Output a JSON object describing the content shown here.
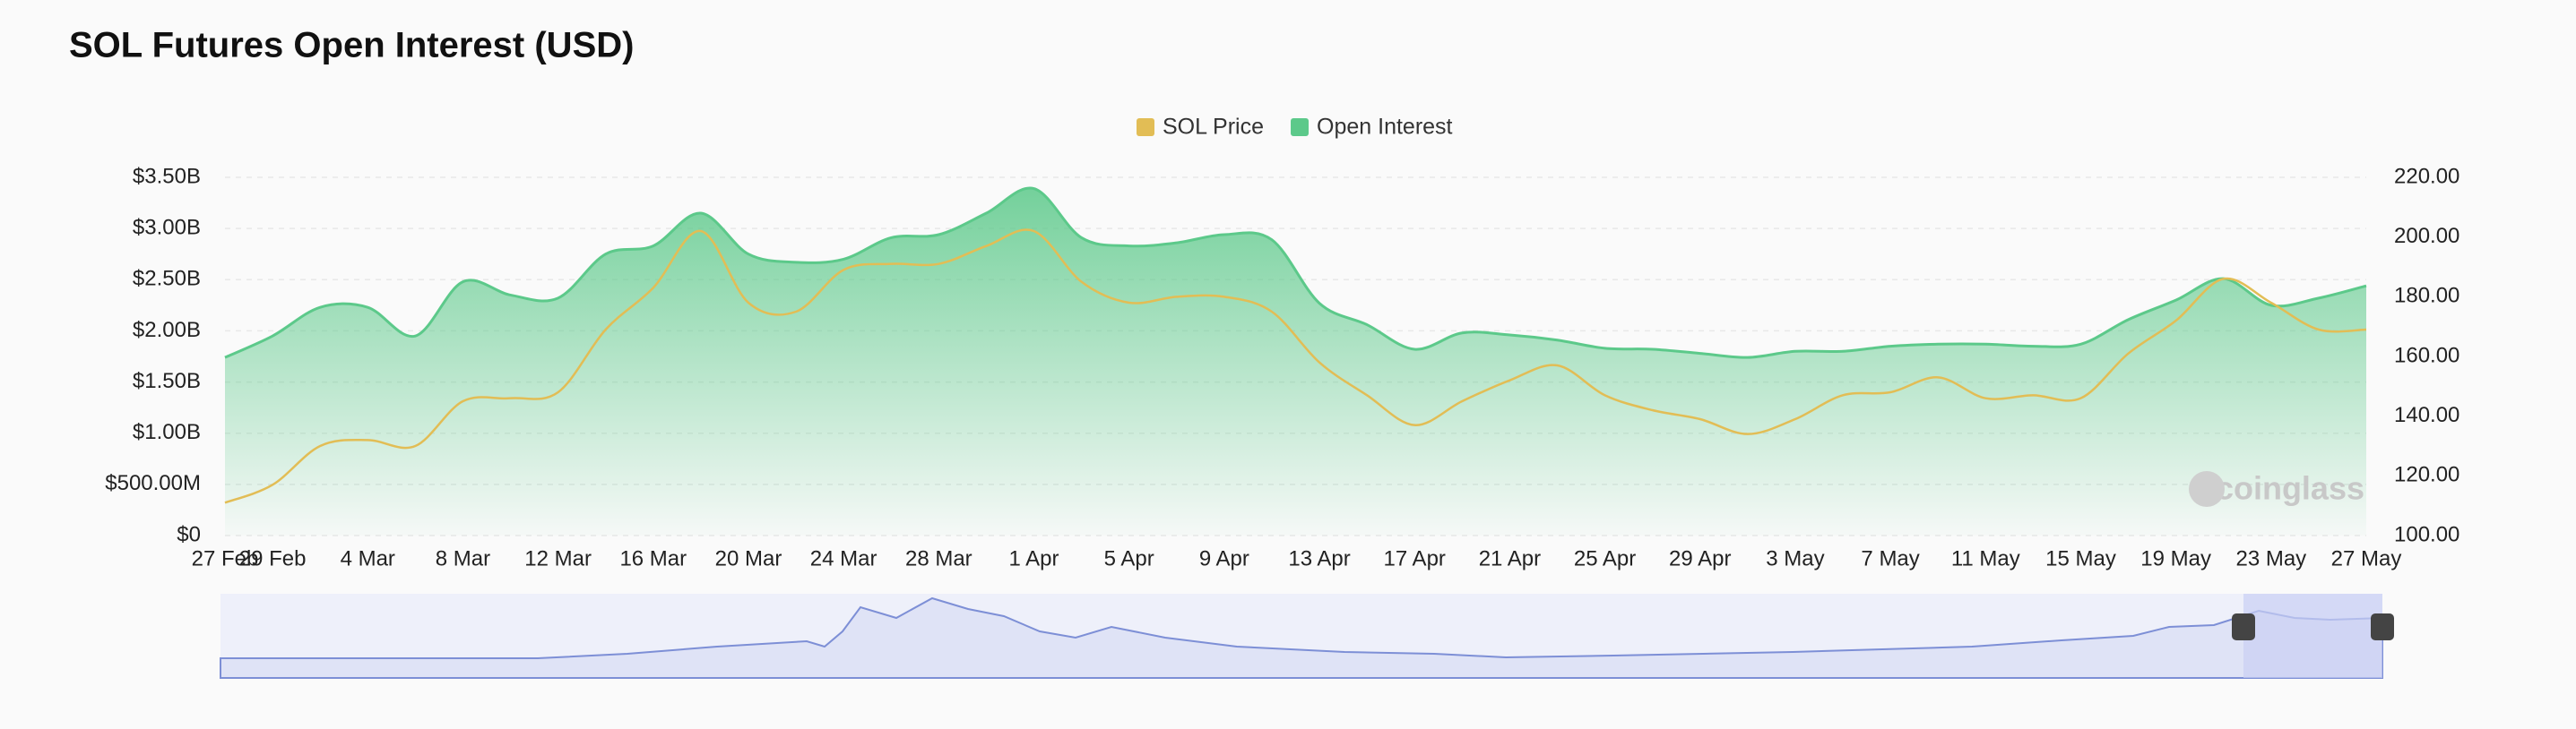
{
  "chart_data": {
    "type": "line",
    "title": "SOL Futures Open Interest (USD)",
    "watermark": "coinglass",
    "categories": [
      "27 Feb",
      "29 Feb",
      null,
      "4 Mar",
      null,
      "8 Mar",
      null,
      "12 Mar",
      null,
      "16 Mar",
      null,
      "20 Mar",
      null,
      "24 Mar",
      null,
      "28 Mar",
      null,
      "1 Apr",
      null,
      "5 Apr",
      null,
      "9 Apr",
      null,
      "13 Apr",
      null,
      "17 Apr",
      null,
      "21 Apr",
      null,
      "25 Apr",
      null,
      "29 Apr",
      null,
      "3 May",
      null,
      "7 May",
      null,
      "11 May",
      null,
      "15 May",
      null,
      "19 May",
      null,
      "23 May",
      null,
      "27 May"
    ],
    "series": [
      {
        "name": "SOL Price",
        "color": "#e2bd55",
        "axis": "y2",
        "values": [
          111,
          117,
          130,
          132,
          130,
          145,
          146,
          148,
          169,
          183,
          202,
          178,
          175,
          189,
          191,
          191,
          197,
          202,
          185,
          178,
          180,
          180,
          175,
          158,
          147,
          137,
          145,
          152,
          157,
          147,
          142,
          139,
          134,
          139,
          147,
          148,
          153,
          146,
          147,
          146,
          161,
          172,
          186,
          178,
          169,
          169
        ]
      },
      {
        "name": "Open Interest",
        "color": "#5cc98a",
        "values": [
          1740000000,
          1950000000,
          2230000000,
          2230000000,
          1950000000,
          2480000000,
          2350000000,
          2320000000,
          2750000000,
          2830000000,
          3150000000,
          2750000000,
          2670000000,
          2700000000,
          2910000000,
          2940000000,
          3150000000,
          3390000000,
          2910000000,
          2830000000,
          2860000000,
          2940000000,
          2890000000,
          2270000000,
          2060000000,
          1820000000,
          1980000000,
          1960000000,
          1910000000,
          1830000000,
          1820000000,
          1780000000,
          1740000000,
          1800000000,
          1800000000,
          1850000000,
          1870000000,
          1870000000,
          1850000000,
          1870000000,
          2110000000,
          2300000000,
          2510000000,
          2250000000,
          2320000000,
          2440000000
        ]
      }
    ],
    "ylim": [
      0,
      3500000000
    ],
    "yticks": [
      {
        "value": 0,
        "label": "$0"
      },
      {
        "value": 500000000,
        "label": "$500.00M"
      },
      {
        "value": 1000000000,
        "label": "$1.00B"
      },
      {
        "value": 1500000000,
        "label": "$1.50B"
      },
      {
        "value": 2000000000,
        "label": "$2.00B"
      },
      {
        "value": 2500000000,
        "label": "$2.50B"
      },
      {
        "value": 3000000000,
        "label": "$3.00B"
      },
      {
        "value": 3500000000,
        "label": "$3.50B"
      }
    ],
    "y2lim": [
      100,
      220
    ],
    "y2ticks": [
      {
        "value": 100,
        "label": "100.00"
      },
      {
        "value": 120,
        "label": "120.00"
      },
      {
        "value": 140,
        "label": "140.00"
      },
      {
        "value": 160,
        "label": "160.00"
      },
      {
        "value": 180,
        "label": "180.00"
      },
      {
        "value": 200,
        "label": "200.00"
      },
      {
        "value": 220,
        "label": "220.00"
      }
    ],
    "grid": true,
    "legend": "top"
  }
}
